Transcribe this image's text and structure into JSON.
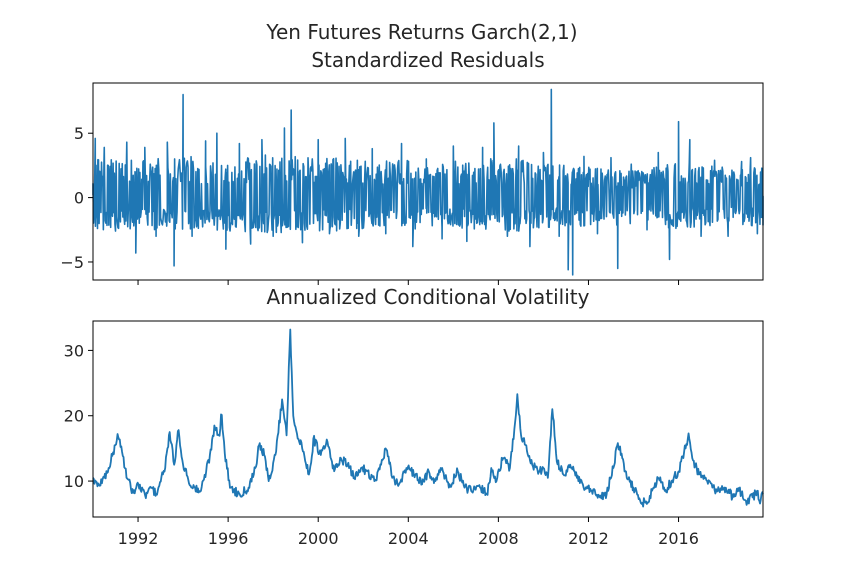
{
  "figure": {
    "suptitle": "Yen Futures Returns Garch(2,1)"
  },
  "chart_data": [
    {
      "type": "line",
      "title": "Standardized Residuals",
      "xlabel": "",
      "ylabel": "",
      "xlim": [
        1990.0,
        2019.75
      ],
      "ylim": [
        -6.4,
        8.9
      ],
      "yticks": [
        -5,
        0,
        5
      ],
      "xticks": [
        "1992",
        "1996",
        "2000",
        "2004",
        "2008",
        "2012",
        "2016"
      ],
      "x_ticklabels_visible": false,
      "grid": false,
      "color": "#1f77b4",
      "series": [
        {
          "points": [
            [
              1990.0,
              0.2
            ],
            [
              1990.1,
              4.6
            ],
            [
              1990.2,
              -2.4
            ],
            [
              1990.5,
              3.9
            ],
            [
              1991.0,
              -2.6
            ],
            [
              1991.5,
              4.3
            ],
            [
              1991.9,
              -4.3
            ],
            [
              1992.3,
              3.9
            ],
            [
              1992.8,
              -3.0
            ],
            [
              1993.3,
              4.3
            ],
            [
              1993.6,
              -5.3
            ],
            [
              1994.0,
              8.0
            ],
            [
              1994.4,
              -3.0
            ],
            [
              1995.0,
              4.4
            ],
            [
              1995.5,
              5.0
            ],
            [
              1995.9,
              -4.0
            ],
            [
              1996.5,
              4.2
            ],
            [
              1997.0,
              -3.6
            ],
            [
              1997.5,
              4.5
            ],
            [
              1998.0,
              -3.0
            ],
            [
              1998.5,
              5.4
            ],
            [
              1998.8,
              6.8
            ],
            [
              1999.3,
              -3.5
            ],
            [
              2000.0,
              4.5
            ],
            [
              2000.5,
              -2.8
            ],
            [
              2001.2,
              4.6
            ],
            [
              2001.8,
              -3.0
            ],
            [
              2002.4,
              3.8
            ],
            [
              2003.0,
              -2.8
            ],
            [
              2003.7,
              4.2
            ],
            [
              2004.2,
              -3.8
            ],
            [
              2004.8,
              3.0
            ],
            [
              2005.5,
              -3.2
            ],
            [
              2006.0,
              4.0
            ],
            [
              2006.6,
              -3.4
            ],
            [
              2007.3,
              3.9
            ],
            [
              2007.8,
              5.8
            ],
            [
              2008.4,
              -3.0
            ],
            [
              2008.9,
              4.0
            ],
            [
              2009.4,
              -3.8
            ],
            [
              2010.0,
              3.5
            ],
            [
              2010.35,
              8.4
            ],
            [
              2010.7,
              -3.0
            ],
            [
              2011.1,
              -5.6
            ],
            [
              2011.3,
              -6.0
            ],
            [
              2011.8,
              3.2
            ],
            [
              2012.4,
              -2.8
            ],
            [
              2013.0,
              3.1
            ],
            [
              2013.3,
              -5.5
            ],
            [
              2013.9,
              2.6
            ],
            [
              2014.6,
              -2.5
            ],
            [
              2015.1,
              3.5
            ],
            [
              2015.6,
              -4.8
            ],
            [
              2016.0,
              5.9
            ],
            [
              2016.5,
              4.5
            ],
            [
              2017.0,
              -3.0
            ],
            [
              2017.6,
              2.9
            ],
            [
              2018.2,
              -3.0
            ],
            [
              2018.8,
              2.8
            ],
            [
              2019.2,
              3.1
            ],
            [
              2019.5,
              -2.8
            ],
            [
              2019.75,
              0.1
            ]
          ],
          "upper_envelope": [
            [
              1990.0,
              3.0
            ],
            [
              1991.0,
              3.1
            ],
            [
              1992.0,
              3.0
            ],
            [
              1993.0,
              3.1
            ],
            [
              1994.0,
              3.3
            ],
            [
              1995.0,
              3.0
            ],
            [
              1996.0,
              3.1
            ],
            [
              1997.0,
              3.2
            ],
            [
              1998.0,
              3.4
            ],
            [
              1999.0,
              3.2
            ],
            [
              2000.0,
              3.0
            ],
            [
              2001.0,
              3.1
            ],
            [
              2002.0,
              2.9
            ],
            [
              2003.0,
              3.0
            ],
            [
              2004.0,
              2.9
            ],
            [
              2005.0,
              2.6
            ],
            [
              2006.0,
              2.8
            ],
            [
              2007.0,
              3.0
            ],
            [
              2008.0,
              3.1
            ],
            [
              2009.0,
              3.0
            ],
            [
              2010.0,
              2.6
            ],
            [
              2011.0,
              2.5
            ],
            [
              2012.0,
              2.4
            ],
            [
              2013.0,
              2.3
            ],
            [
              2014.0,
              2.1
            ],
            [
              2015.0,
              2.4
            ],
            [
              2016.0,
              3.0
            ],
            [
              2017.0,
              2.6
            ],
            [
              2018.0,
              2.4
            ],
            [
              2019.0,
              2.4
            ],
            [
              2019.75,
              2.4
            ]
          ],
          "lower_envelope": [
            [
              1990.0,
              -2.6
            ],
            [
              1991.0,
              -2.5
            ],
            [
              1992.0,
              -2.6
            ],
            [
              1993.0,
              -2.6
            ],
            [
              1994.0,
              -2.7
            ],
            [
              1995.0,
              -2.6
            ],
            [
              1996.0,
              -2.6
            ],
            [
              1997.0,
              -2.7
            ],
            [
              1998.0,
              -2.8
            ],
            [
              1999.0,
              -2.8
            ],
            [
              2000.0,
              -2.6
            ],
            [
              2001.0,
              -2.6
            ],
            [
              2002.0,
              -2.5
            ],
            [
              2003.0,
              -2.5
            ],
            [
              2004.0,
              -2.5
            ],
            [
              2005.0,
              -2.3
            ],
            [
              2006.0,
              -2.4
            ],
            [
              2007.0,
              -2.6
            ],
            [
              2008.0,
              -2.6
            ],
            [
              2009.0,
              -2.6
            ],
            [
              2010.0,
              -2.3
            ],
            [
              2011.0,
              -2.4
            ],
            [
              2012.0,
              -2.2
            ],
            [
              2013.0,
              -2.2
            ],
            [
              2014.0,
              -2.0
            ],
            [
              2015.0,
              -2.2
            ],
            [
              2016.0,
              -2.5
            ],
            [
              2017.0,
              -2.3
            ],
            [
              2018.0,
              -2.1
            ],
            [
              2019.0,
              -2.2
            ],
            [
              2019.75,
              -2.2
            ]
          ]
        }
      ]
    },
    {
      "type": "line",
      "title": "Annualized Conditional Volatility",
      "xlabel": "",
      "ylabel": "",
      "xlim": [
        1990.0,
        2019.75
      ],
      "ylim": [
        4.5,
        34.5
      ],
      "yticks": [
        10,
        20,
        30
      ],
      "xticks": [
        "1992",
        "1996",
        "2000",
        "2004",
        "2008",
        "2012",
        "2016"
      ],
      "x_ticklabels_visible": true,
      "grid": false,
      "color": "#1f77b4",
      "series": [
        {
          "points": [
            [
              1990.0,
              10.5
            ],
            [
              1990.2,
              9.2
            ],
            [
              1990.5,
              10.5
            ],
            [
              1990.7,
              12.0
            ],
            [
              1991.0,
              15.5
            ],
            [
              1991.1,
              17.2
            ],
            [
              1991.3,
              14.5
            ],
            [
              1991.5,
              10.5
            ],
            [
              1991.8,
              8.2
            ],
            [
              1992.0,
              9.5
            ],
            [
              1992.3,
              7.8
            ],
            [
              1992.6,
              9.0
            ],
            [
              1992.8,
              8.0
            ],
            [
              1993.2,
              12.0
            ],
            [
              1993.4,
              17.5
            ],
            [
              1993.6,
              12.5
            ],
            [
              1993.8,
              17.8
            ],
            [
              1994.0,
              12.5
            ],
            [
              1994.4,
              9.0
            ],
            [
              1994.8,
              8.5
            ],
            [
              1995.2,
              14.0
            ],
            [
              1995.4,
              18.5
            ],
            [
              1995.6,
              17.0
            ],
            [
              1995.7,
              20.2
            ],
            [
              1995.9,
              13.0
            ],
            [
              1996.1,
              9.0
            ],
            [
              1996.5,
              8.0
            ],
            [
              1996.9,
              9.0
            ],
            [
              1997.2,
              12.0
            ],
            [
              1997.4,
              15.8
            ],
            [
              1997.6,
              14.0
            ],
            [
              1997.8,
              10.0
            ],
            [
              1998.1,
              14.0
            ],
            [
              1998.4,
              22.5
            ],
            [
              1998.6,
              17.0
            ],
            [
              1998.75,
              33.2
            ],
            [
              1998.9,
              20.0
            ],
            [
              1999.1,
              16.5
            ],
            [
              1999.3,
              15.0
            ],
            [
              1999.6,
              11.0
            ],
            [
              1999.8,
              16.5
            ],
            [
              2000.1,
              14.0
            ],
            [
              2000.4,
              16.0
            ],
            [
              2000.7,
              11.5
            ],
            [
              2001.0,
              13.5
            ],
            [
              2001.3,
              12.5
            ],
            [
              2001.6,
              10.5
            ],
            [
              2001.9,
              12.0
            ],
            [
              2002.2,
              11.5
            ],
            [
              2002.5,
              10.0
            ],
            [
              2002.8,
              12.5
            ],
            [
              2003.0,
              15.0
            ],
            [
              2003.3,
              10.5
            ],
            [
              2003.6,
              9.5
            ],
            [
              2003.9,
              12.0
            ],
            [
              2004.3,
              11.0
            ],
            [
              2004.6,
              9.5
            ],
            [
              2004.9,
              11.5
            ],
            [
              2005.2,
              10.0
            ],
            [
              2005.5,
              12.0
            ],
            [
              2005.8,
              9.0
            ],
            [
              2006.2,
              11.5
            ],
            [
              2006.5,
              9.0
            ],
            [
              2006.8,
              8.5
            ],
            [
              2007.2,
              9.0
            ],
            [
              2007.5,
              8.0
            ],
            [
              2007.7,
              12.0
            ],
            [
              2007.9,
              10.0
            ],
            [
              2008.2,
              13.5
            ],
            [
              2008.5,
              12.0
            ],
            [
              2008.75,
              19.0
            ],
            [
              2008.85,
              23.3
            ],
            [
              2009.0,
              17.0
            ],
            [
              2009.2,
              15.5
            ],
            [
              2009.5,
              12.5
            ],
            [
              2009.8,
              11.5
            ],
            [
              2010.0,
              12.0
            ],
            [
              2010.2,
              10.5
            ],
            [
              2010.4,
              21.0
            ],
            [
              2010.6,
              13.0
            ],
            [
              2010.9,
              11.0
            ],
            [
              2011.2,
              12.5
            ],
            [
              2011.5,
              10.5
            ],
            [
              2011.8,
              9.0
            ],
            [
              2012.1,
              8.5
            ],
            [
              2012.5,
              7.5
            ],
            [
              2012.8,
              8.0
            ],
            [
              2013.1,
              12.0
            ],
            [
              2013.3,
              15.8
            ],
            [
              2013.5,
              13.5
            ],
            [
              2013.7,
              10.5
            ],
            [
              2014.0,
              9.0
            ],
            [
              2014.3,
              7.0
            ],
            [
              2014.6,
              6.5
            ],
            [
              2014.9,
              9.0
            ],
            [
              2015.1,
              10.5
            ],
            [
              2015.4,
              8.5
            ],
            [
              2015.7,
              10.0
            ],
            [
              2016.0,
              11.5
            ],
            [
              2016.3,
              15.0
            ],
            [
              2016.45,
              17.3
            ],
            [
              2016.6,
              13.5
            ],
            [
              2016.9,
              11.0
            ],
            [
              2017.2,
              10.5
            ],
            [
              2017.5,
              9.0
            ],
            [
              2017.8,
              8.5
            ],
            [
              2018.1,
              9.0
            ],
            [
              2018.4,
              7.5
            ],
            [
              2018.7,
              8.5
            ],
            [
              2019.0,
              7.0
            ],
            [
              2019.3,
              7.5
            ],
            [
              2019.5,
              8.5
            ],
            [
              2019.6,
              7.0
            ],
            [
              2019.75,
              8.0
            ]
          ]
        }
      ]
    }
  ]
}
